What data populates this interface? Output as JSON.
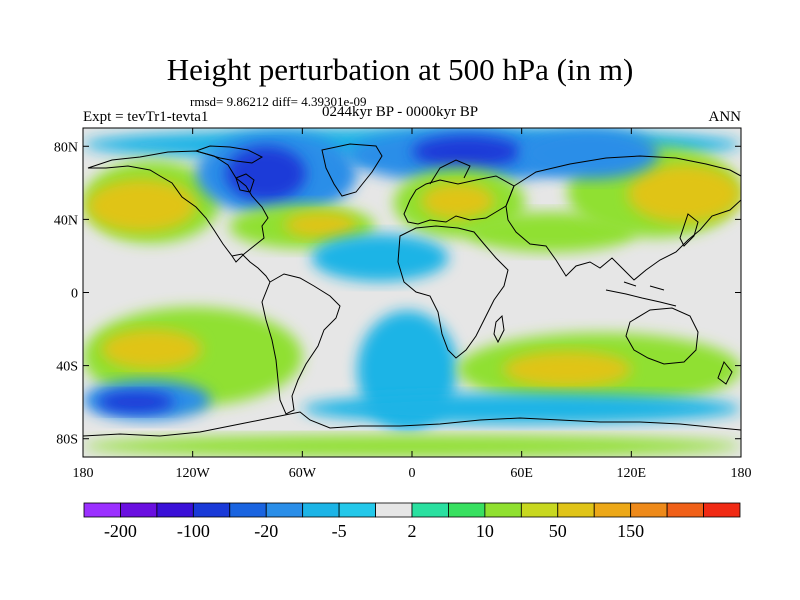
{
  "title": "Height perturbation at 500 hPa (in m)",
  "stats": "rmsd= 9.86212 diff= 4.39301e-09",
  "expt": "Expt = tevTr1-tevta1",
  "period": "0244kyr BP - 0000kyr BP",
  "season": "ANN",
  "map": {
    "lon_range": [
      -180,
      180
    ],
    "lat_range": [
      -90,
      90
    ],
    "lat_ticks": [
      {
        "v": 80,
        "label": "80N"
      },
      {
        "v": 40,
        "label": "40N"
      },
      {
        "v": 0,
        "label": "0"
      },
      {
        "v": -40,
        "label": "40S"
      },
      {
        "v": -80,
        "label": "80S"
      }
    ],
    "lon_ticks": [
      {
        "v": -180,
        "label": "180"
      },
      {
        "v": -120,
        "label": "120W"
      },
      {
        "v": -60,
        "label": "60W"
      },
      {
        "v": 0,
        "label": "0"
      },
      {
        "v": 60,
        "label": "60E"
      },
      {
        "v": 120,
        "label": "120E"
      },
      {
        "v": 180,
        "label": "180"
      }
    ],
    "background_color": "#e6e6e6",
    "features": [
      {
        "name": "arctic-low",
        "lon": [
          -180,
          180
        ],
        "lat": [
          72,
          90
        ],
        "level": -5
      },
      {
        "name": "n-pacific-high",
        "lon": [
          -180,
          -105
        ],
        "lat": [
          27,
          72
        ],
        "level": 10
      },
      {
        "name": "n-pacific-high-core",
        "lon": [
          -178,
          -118
        ],
        "lat": [
          33,
          62
        ],
        "level": 50
      },
      {
        "name": "n-america-low",
        "lon": [
          -118,
          -30
        ],
        "lat": [
          42,
          88
        ],
        "level": -20
      },
      {
        "name": "n-america-low-core",
        "lon": [
          -102,
          -58
        ],
        "lat": [
          50,
          80
        ],
        "level": -100
      },
      {
        "name": "n-atlantic-band",
        "lon": [
          -100,
          -20
        ],
        "lat": [
          24,
          48
        ],
        "level": 10
      },
      {
        "name": "n-atlantic-band-core",
        "lon": [
          -70,
          -30
        ],
        "lat": [
          30,
          44
        ],
        "level": 50
      },
      {
        "name": "eurasia-low",
        "lon": [
          -35,
          92
        ],
        "lat": [
          60,
          90
        ],
        "level": -20
      },
      {
        "name": "eurasia-low-core",
        "lon": [
          0,
          60
        ],
        "lat": [
          68,
          86
        ],
        "level": -100
      },
      {
        "name": "europe-high",
        "lon": [
          -10,
          62
        ],
        "lat": [
          30,
          68
        ],
        "level": 10
      },
      {
        "name": "europe-high-core",
        "lon": [
          5,
          45
        ],
        "lat": [
          40,
          60
        ],
        "level": 50
      },
      {
        "name": "tropical-atlantic-low",
        "lon": [
          -55,
          20
        ],
        "lat": [
          6,
          32
        ],
        "level": -5
      },
      {
        "name": "mideast-band",
        "lon": [
          30,
          122
        ],
        "lat": [
          22,
          44
        ],
        "level": 10
      },
      {
        "name": "asia-high",
        "lon": [
          85,
          180
        ],
        "lat": [
          30,
          80
        ],
        "level": 10
      },
      {
        "name": "asia-high-core",
        "lon": [
          118,
          180
        ],
        "lat": [
          38,
          70
        ],
        "level": 50
      },
      {
        "name": "siberia-low",
        "lon": [
          60,
          135
        ],
        "lat": [
          62,
          90
        ],
        "level": -20
      },
      {
        "name": "south-atlantic-low",
        "lon": [
          -30,
          25
        ],
        "lat": [
          -75,
          -10
        ],
        "level": -5
      },
      {
        "name": "s-pacific-band",
        "lon": [
          -180,
          -60
        ],
        "lat": [
          -62,
          -8
        ],
        "level": 10
      },
      {
        "name": "s-pacific-band-core",
        "lon": [
          -170,
          -115
        ],
        "lat": [
          -42,
          -20
        ],
        "level": 50
      },
      {
        "name": "s-pacific-low",
        "lon": [
          -180,
          -110
        ],
        "lat": [
          -70,
          -48
        ],
        "level": -20
      },
      {
        "name": "s-pacific-low-core",
        "lon": [
          -172,
          -130
        ],
        "lat": [
          -66,
          -54
        ],
        "level": -100
      },
      {
        "name": "s-indian-band",
        "lon": [
          25,
          180
        ],
        "lat": [
          -62,
          -22
        ],
        "level": 10
      },
      {
        "name": "s-indian-band-core",
        "lon": [
          50,
          120
        ],
        "lat": [
          -52,
          -32
        ],
        "level": 50
      },
      {
        "name": "southern-ocean-low",
        "lon": [
          -60,
          180
        ],
        "lat": [
          -72,
          -55
        ],
        "level": -5
      },
      {
        "name": "antarctic-high",
        "lon": [
          -180,
          180
        ],
        "lat": [
          -90,
          -78
        ],
        "level": 10
      }
    ]
  },
  "colorbar": {
    "colors": [
      "#9b30ff",
      "#6a0fe0",
      "#3a10d8",
      "#1a3ad8",
      "#1a64e0",
      "#2a8ee8",
      "#1cb4e6",
      "#24c8ea",
      "#e6e6e6",
      "#2ae0a0",
      "#38e060",
      "#90e030",
      "#c8d820",
      "#e0c418",
      "#eca818",
      "#ee8a1a",
      "#f06018",
      "#f02a14"
    ],
    "labels": [
      "-200",
      "-100",
      "-20",
      "-5",
      "2",
      "10",
      "50",
      "150"
    ],
    "level_colors": {
      "-100": "#1a3ad8",
      "-20": "#2a8ee8",
      "-5": "#1cb4e6",
      "10": "#90e030",
      "50": "#e0c418"
    }
  }
}
